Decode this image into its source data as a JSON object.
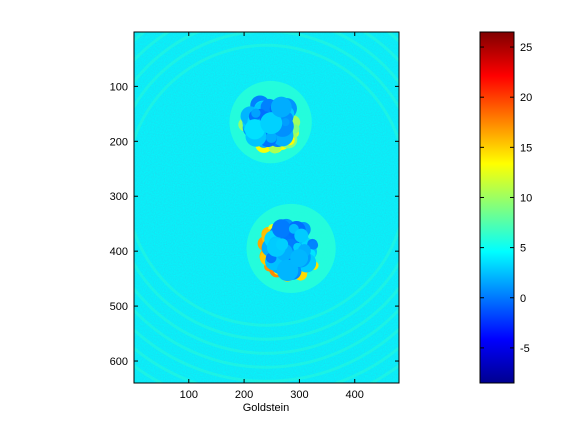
{
  "chart_data": {
    "type": "heatmap",
    "title": "",
    "xlabel": "Goldstein",
    "ylabel": "",
    "xlim": [
      1,
      480
    ],
    "ylim": [
      640,
      1
    ],
    "y_reversed": true,
    "x_ticks": [
      100,
      200,
      300,
      400
    ],
    "y_ticks": [
      100,
      200,
      300,
      400,
      500,
      600
    ],
    "colormap": "jet",
    "colorbar": {
      "range": [
        -8.5,
        26.5
      ],
      "ticks": [
        -5,
        0,
        5,
        10,
        15,
        20,
        25
      ]
    },
    "background_value": 4.5,
    "annular_ring_value": 6.0,
    "regions": [
      {
        "name_hint": "upper blob",
        "center": [
          248,
          165
        ],
        "radius": 48,
        "typical_value": 1.5,
        "edge_value": 13.5
      },
      {
        "name_hint": "lower blob",
        "center": [
          285,
          395
        ],
        "radius": 52,
        "typical_value": 1.5,
        "edge_value": 17.5
      }
    ],
    "grid": false
  }
}
